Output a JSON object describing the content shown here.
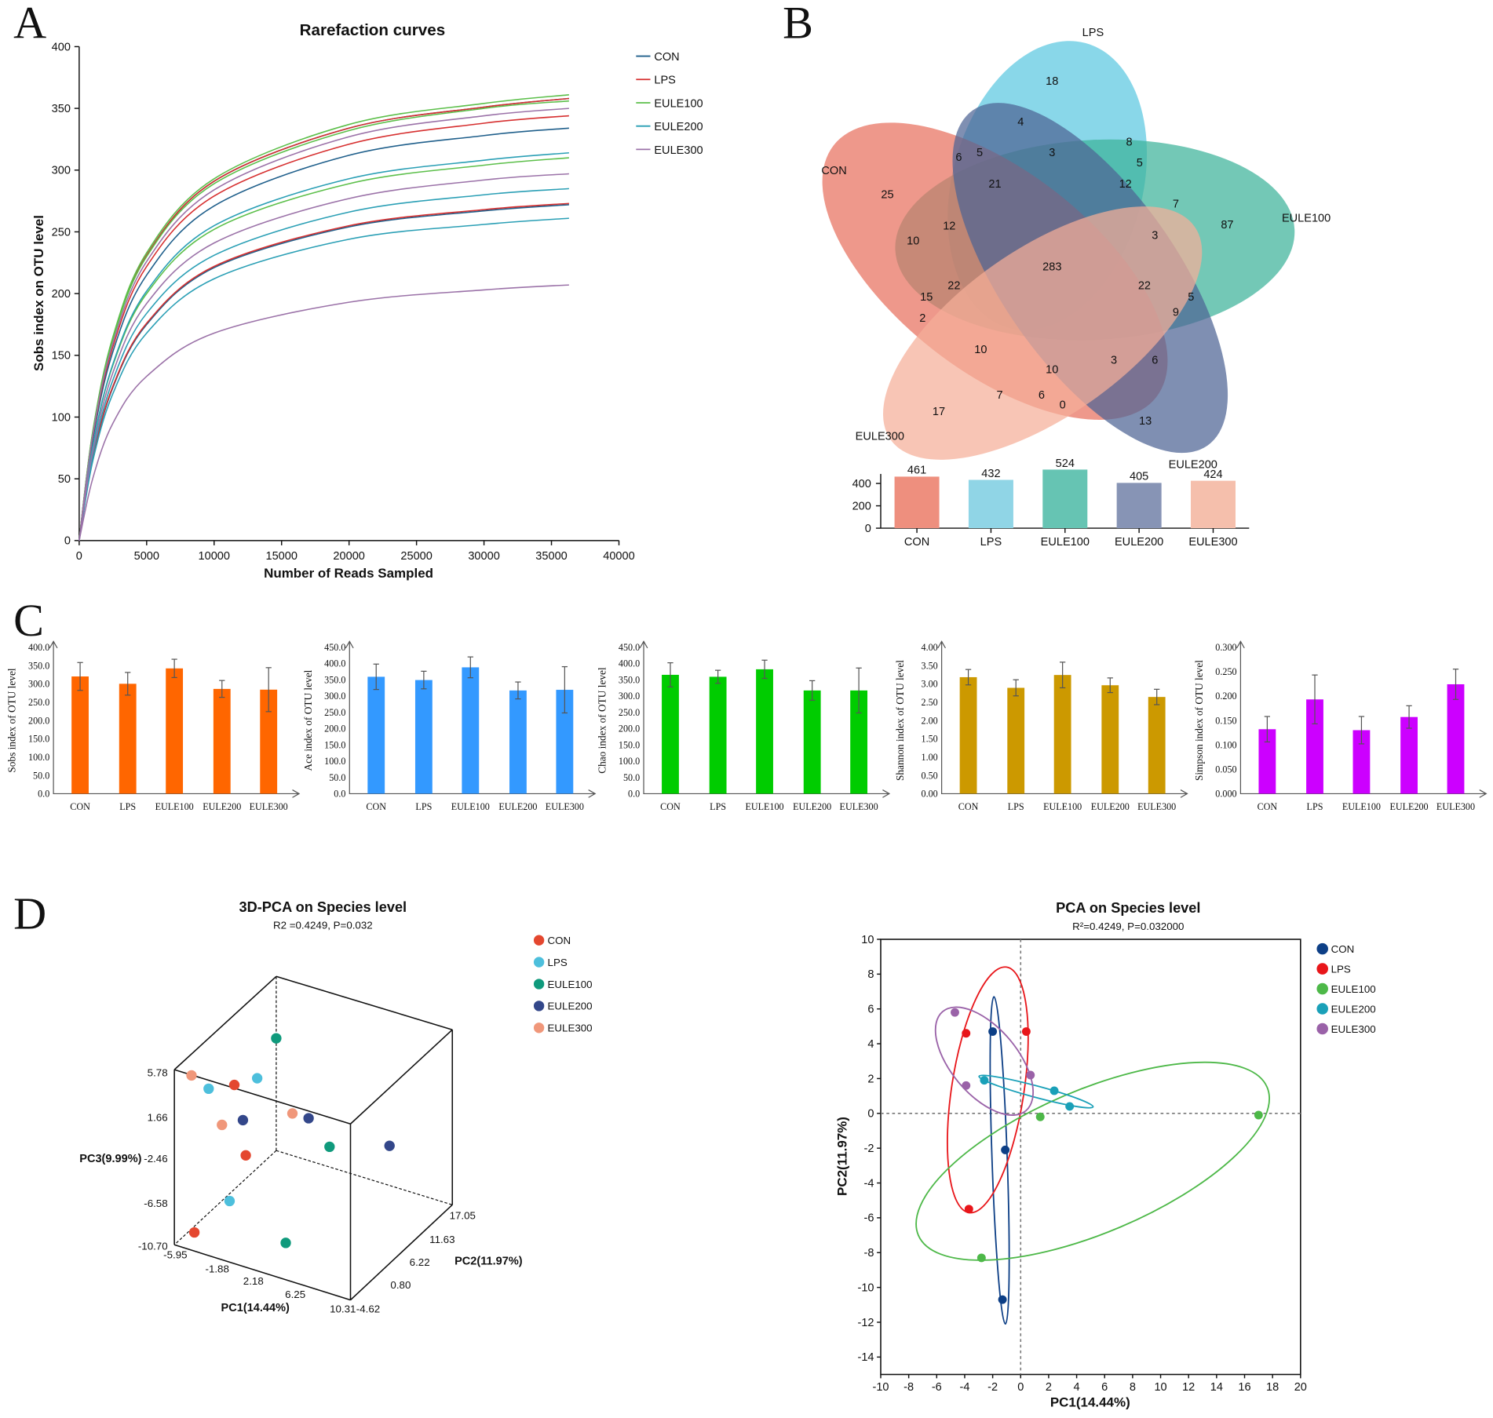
{
  "panel_labels": {
    "a": "A",
    "b": "B",
    "c": "C",
    "d": "D"
  },
  "groups": [
    "CON",
    "LPS",
    "EULE100",
    "EULE200",
    "EULE300"
  ],
  "chart_data": [
    {
      "id": "rarefaction",
      "type": "line",
      "title": "Rarefaction curves",
      "xlabel": "Number of Reads Sampled",
      "ylabel": "Sobs index on OTU level",
      "xlim": [
        0,
        40000
      ],
      "ylim": [
        0,
        400
      ],
      "xticks": [
        "0",
        "5000",
        "10000",
        "15000",
        "20000",
        "25000",
        "30000",
        "35000",
        "40000"
      ],
      "yticks": [
        "0",
        "50",
        "100",
        "150",
        "200",
        "250",
        "300",
        "350",
        "400"
      ],
      "legend": "top-right",
      "grid": false,
      "x": [
        0,
        1000,
        2500,
        5000,
        10000,
        20000,
        30000,
        36300
      ],
      "series": [
        {
          "name": "CON",
          "color": "#1f5f8b",
          "curves": [
            [
              0,
              87,
              164,
              231,
              291,
              334,
              351,
              358
            ],
            [
              0,
              81,
              153,
              215,
              271,
              312,
              328,
              334
            ],
            [
              0,
              66,
              124,
              175,
              221,
              254,
              267,
              272
            ]
          ]
        },
        {
          "name": "LPS",
          "color": "#d62f2f",
          "curves": [
            [
              0,
              87,
              164,
              231,
              291,
              334,
              351,
              358
            ],
            [
              0,
              84,
              157,
              222,
              279,
              321,
              338,
              344
            ],
            [
              0,
              67,
              125,
              176,
              222,
              255,
              268,
              273
            ]
          ]
        },
        {
          "name": "EULE100",
          "color": "#5cbf4a",
          "curves": [
            [
              0,
              88,
              165,
              233,
              293,
              337,
              354,
              361
            ],
            [
              0,
              87,
              163,
              230,
              289,
              332,
              350,
              356
            ],
            [
              0,
              76,
              142,
              200,
              252,
              289,
              304,
              310
            ]
          ]
        },
        {
          "name": "EULE200",
          "color": "#2a9fb5",
          "curves": [
            [
              0,
              76,
              143,
              202,
              255,
              293,
              308,
              314
            ],
            [
              0,
              69,
              130,
              184,
              231,
              266,
              280,
              285
            ],
            [
              0,
              64,
              119,
              168,
              212,
              244,
              256,
              261
            ]
          ]
        },
        {
          "name": "EULE300",
          "color": "#9b72a8",
          "curves": [
            [
              0,
              85,
              160,
              226,
              284,
              327,
              344,
              350
            ],
            [
              0,
              72,
              136,
              192,
              241,
              277,
              292,
              297
            ],
            [
              0,
              50,
              95,
              133,
              168,
              193,
              203,
              207
            ]
          ]
        }
      ]
    },
    {
      "id": "venn",
      "type": "venn",
      "sets": [
        {
          "name": "CON",
          "color": "#e8705e"
        },
        {
          "name": "LPS",
          "color": "#5bc8e0"
        },
        {
          "name": "EULE100",
          "color": "#3db39a"
        },
        {
          "name": "EULE200",
          "color": "#4d6494"
        },
        {
          "name": "EULE300",
          "color": "#f5ae98"
        }
      ],
      "region_counts": [
        18,
        4,
        6,
        5,
        3,
        8,
        5,
        21,
        12,
        25,
        7,
        87,
        12,
        10,
        3,
        283,
        22,
        22,
        15,
        5,
        9,
        2,
        10,
        10,
        3,
        6,
        7,
        6,
        0,
        17,
        13
      ]
    },
    {
      "id": "venn-totals",
      "type": "bar",
      "categories": [
        "CON",
        "LPS",
        "EULE100",
        "EULE200",
        "EULE300"
      ],
      "values": [
        461,
        432,
        524,
        405,
        424
      ],
      "colors": [
        "#ee8f7e",
        "#90d5e6",
        "#66c4b3",
        "#8794b5",
        "#f5bfac"
      ],
      "ylim": [
        0,
        500
      ],
      "yticks": [
        "0",
        "200",
        "400"
      ]
    },
    {
      "id": "sobs",
      "type": "bar",
      "color": "#ff6600",
      "ylabel": "Sobs index of OTU level",
      "categories": [
        "CON",
        "LPS",
        "EULE100",
        "EULE200",
        "EULE300"
      ],
      "values": [
        320,
        300,
        342,
        286,
        284
      ],
      "errors": [
        38,
        31,
        25,
        23,
        60
      ],
      "ylim": [
        0,
        400
      ],
      "yticks": [
        "0.0",
        "50.0",
        "100.0",
        "150.0",
        "200.0",
        "250.0",
        "300.0",
        "350.0",
        "400.0"
      ]
    },
    {
      "id": "ace",
      "type": "bar",
      "color": "#3399ff",
      "ylabel": "Ace index of OTU level",
      "categories": [
        "CON",
        "LPS",
        "EULE100",
        "EULE200",
        "EULE300"
      ],
      "values": [
        359,
        349,
        388,
        317,
        319
      ],
      "errors": [
        39,
        27,
        32,
        26,
        71
      ],
      "ylim": [
        0,
        450
      ],
      "yticks": [
        "0.0",
        "50.0",
        "100.0",
        "150.0",
        "200.0",
        "250.0",
        "300.0",
        "350.0",
        "400.0",
        "450.0"
      ]
    },
    {
      "id": "chao",
      "type": "bar",
      "color": "#00cc00",
      "ylabel": "Chao index of OTU level",
      "categories": [
        "CON",
        "LPS",
        "EULE100",
        "EULE200",
        "EULE300"
      ],
      "values": [
        365,
        359,
        382,
        317,
        317
      ],
      "errors": [
        37,
        20,
        28,
        30,
        69
      ],
      "ylim": [
        0,
        450
      ],
      "yticks": [
        "0.0",
        "50.0",
        "100.0",
        "150.0",
        "200.0",
        "250.0",
        "300.0",
        "350.0",
        "400.0",
        "450.0"
      ]
    },
    {
      "id": "shannon",
      "type": "bar",
      "color": "#cc9900",
      "ylabel": "Shannon index of OTU level",
      "categories": [
        "CON",
        "LPS",
        "EULE100",
        "EULE200",
        "EULE300"
      ],
      "values": [
        3.18,
        2.89,
        3.24,
        2.96,
        2.64
      ],
      "errors": [
        0.21,
        0.22,
        0.35,
        0.2,
        0.21
      ],
      "ylim": [
        0,
        4
      ],
      "yticks": [
        "0.00",
        "0.50",
        "1.00",
        "1.50",
        "2.00",
        "2.50",
        "3.00",
        "3.50",
        "4.00"
      ]
    },
    {
      "id": "simpson",
      "type": "bar",
      "color": "#cc00ff",
      "ylabel": "Simpson index of OTU level",
      "categories": [
        "CON",
        "LPS",
        "EULE100",
        "EULE200",
        "EULE300"
      ],
      "values": [
        0.132,
        0.193,
        0.13,
        0.157,
        0.224
      ],
      "errors": [
        0.026,
        0.05,
        0.028,
        0.023,
        0.031
      ],
      "ylim": [
        0,
        0.3
      ],
      "yticks": [
        "0.000",
        "0.050",
        "0.100",
        "0.150",
        "0.200",
        "0.250",
        "0.300"
      ]
    },
    {
      "id": "pca3d",
      "type": "scatter",
      "title": "3D-PCA on Species level",
      "subtitle": "R2 =0.4249, P=0.032",
      "xlabel": "PC1(14.44%)",
      "ylabel": "PC2(11.97%)",
      "zlabel": "PC3(9.99%)",
      "xticks": [
        "-5.95",
        "-1.88",
        "2.18",
        "6.25",
        "10.31"
      ],
      "yticks": [
        "-4.62",
        "0.80",
        "6.22",
        "11.63",
        "17.05"
      ],
      "zticks": [
        "5.78",
        "1.66",
        "-2.46",
        "-6.58",
        "-10.70"
      ],
      "legend": "top-right",
      "series": [
        {
          "name": "CON",
          "color": "#e4472f"
        },
        {
          "name": "LPS",
          "color": "#4dbfdc"
        },
        {
          "name": "EULE100",
          "color": "#0f9a7c"
        },
        {
          "name": "EULE200",
          "color": "#33478a"
        },
        {
          "name": "EULE300",
          "color": "#f0977a"
        }
      ]
    },
    {
      "id": "pca2d",
      "type": "scatter",
      "title": "PCA on Species level",
      "subtitle": "R²=0.4249, P=0.032000",
      "xlabel": "PC1(14.44%)",
      "ylabel": "PC2(11.97%)",
      "xlim": [
        -10,
        20
      ],
      "ylim": [
        -15,
        10
      ],
      "xticks": [
        "-10",
        "-8",
        "-6",
        "-4",
        "-2",
        "0",
        "2",
        "4",
        "6",
        "8",
        "10",
        "12",
        "14",
        "16",
        "18",
        "20"
      ],
      "yticks": [
        "10",
        "8",
        "6",
        "4",
        "2",
        "0",
        "-2",
        "-4",
        "-6",
        "-8",
        "-10",
        "-12",
        "-14"
      ],
      "legend": "top-right",
      "series": [
        {
          "name": "CON",
          "color": "#0d3f86",
          "points": [
            [
              -2.0,
              4.7
            ],
            [
              -1.1,
              -2.1
            ],
            [
              -1.3,
              -10.7
            ]
          ]
        },
        {
          "name": "LPS",
          "color": "#e8161a",
          "points": [
            [
              -3.9,
              4.6
            ],
            [
              0.4,
              4.7
            ],
            [
              -3.7,
              -5.5
            ]
          ]
        },
        {
          "name": "EULE100",
          "color": "#4db848",
          "points": [
            [
              1.4,
              -0.2
            ],
            [
              17.0,
              -0.1
            ],
            [
              -2.8,
              -8.3
            ]
          ]
        },
        {
          "name": "EULE200",
          "color": "#1aa0b8",
          "points": [
            [
              -2.6,
              1.9
            ],
            [
              2.4,
              1.3
            ],
            [
              3.5,
              0.4
            ]
          ]
        },
        {
          "name": "EULE300",
          "color": "#9a62a8",
          "points": [
            [
              -4.7,
              5.8
            ],
            [
              -3.9,
              1.6
            ],
            [
              0.7,
              2.2
            ]
          ]
        }
      ]
    }
  ]
}
